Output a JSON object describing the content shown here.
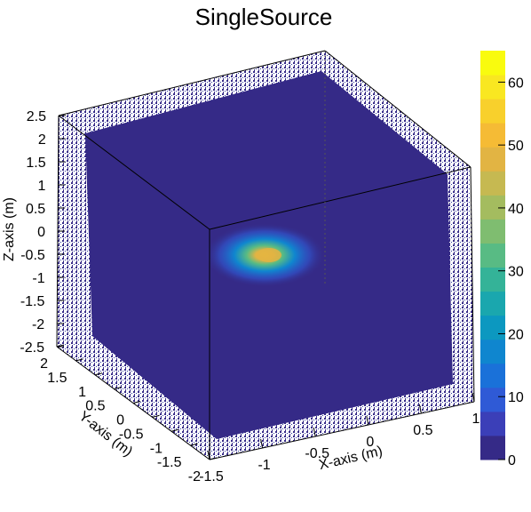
{
  "chart_data": {
    "type": "scatter3d",
    "title": "SingleSource",
    "xlabel": "X-axis (m)",
    "ylabel": "Y-axis (m)",
    "zlabel": "Z-axis (m)",
    "xlim": [
      -1.5,
      1
    ],
    "ylim": [
      -2,
      2
    ],
    "zlim": [
      -2.5,
      2.5
    ],
    "x_ticks": [
      "-1.5",
      "-1",
      "-0.5",
      "0",
      "0.5",
      "1"
    ],
    "y_ticks": [
      "-2",
      "-1.5",
      "-1",
      "-0.5",
      "0",
      "0.5",
      "1",
      "1.5",
      "2"
    ],
    "z_ticks": [
      "-2.5",
      "-2",
      "-1.5",
      "-1",
      "-0.5",
      "0",
      "0.5",
      "1",
      "1.5",
      "2",
      "2.5"
    ],
    "colorbar": {
      "min": 0,
      "max": 65,
      "ticks": [
        "0",
        "10",
        "20",
        "30",
        "40",
        "50",
        "60"
      ],
      "palette": [
        "#352a87",
        "#3b3fb8",
        "#2f5ad6",
        "#1a71d9",
        "#0f86cf",
        "#0c98c0",
        "#1aa7ae",
        "#34b398",
        "#58bb84",
        "#7fbd70",
        "#a4bc5f",
        "#c6b951",
        "#e2b443",
        "#f5bb35",
        "#f8d02c",
        "#f9e721",
        "#f9fb0e"
      ]
    },
    "peak": {
      "x": 0,
      "y": 0,
      "z": -0.5,
      "value": 65
    },
    "background_value": 1
  }
}
